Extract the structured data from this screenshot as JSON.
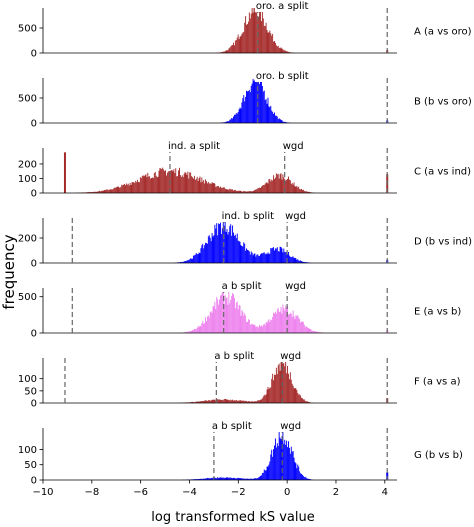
{
  "chart_data": {
    "type": "histogram-stack",
    "xlabel": "log transformed kS value",
    "ylabel": "frequency",
    "x_ticks": [
      -10,
      -8,
      -6,
      -4,
      -2,
      0,
      2,
      4
    ],
    "xlim": [
      -10,
      4.5
    ],
    "panels": [
      {
        "label": "A (a vs oro)",
        "color": "#a52a2a",
        "ylim": [
          0,
          900
        ],
        "y_ticks": [
          0,
          500
        ],
        "tail_spikes": [
          {
            "x": 4.1,
            "value": 60
          }
        ],
        "peaks": [
          {
            "center": -1.3,
            "sd": 0.5,
            "height": 850
          }
        ],
        "vlines": [
          {
            "x": -1.2,
            "label": "oro. a split"
          },
          {
            "x": 4.1,
            "label": ""
          }
        ]
      },
      {
        "label": "B (b vs oro)",
        "color": "#0000ff",
        "ylim": [
          0,
          900
        ],
        "y_ticks": [
          0,
          500
        ],
        "tail_spikes": [
          {
            "x": 4.1,
            "value": 50
          }
        ],
        "peaks": [
          {
            "center": -1.3,
            "sd": 0.45,
            "height": 850
          }
        ],
        "vlines": [
          {
            "x": -1.2,
            "label": "oro. b split"
          },
          {
            "x": 4.1,
            "label": ""
          }
        ]
      },
      {
        "label": "C (a vs ind)",
        "color": "#a52a2a",
        "ylim": [
          0,
          310
        ],
        "y_ticks": [
          0,
          100,
          200
        ],
        "tail_spikes": [
          {
            "x": -9.1,
            "value": 280
          },
          {
            "x": 4.1,
            "value": 130
          }
        ],
        "peaks": [
          {
            "center": -4.8,
            "sd": 1.3,
            "height": 150
          },
          {
            "center": -0.3,
            "sd": 0.5,
            "height": 120
          }
        ],
        "vlines": [
          {
            "x": -4.8,
            "label": "ind. a split"
          },
          {
            "x": -0.1,
            "label": "wgd"
          },
          {
            "x": 4.1,
            "label": ""
          }
        ]
      },
      {
        "label": "D (b vs ind)",
        "color": "#0000ff",
        "ylim": [
          0,
          360
        ],
        "y_ticks": [
          0,
          200
        ],
        "tail_spikes": [
          {
            "x": 4.1,
            "value": 25
          }
        ],
        "peaks": [
          {
            "center": -2.6,
            "sd": 0.65,
            "height": 300
          },
          {
            "center": -0.4,
            "sd": 0.5,
            "height": 110
          }
        ],
        "vlines": [
          {
            "x": -8.8,
            "label": ""
          },
          {
            "x": -2.6,
            "label": "ind. b split"
          },
          {
            "x": 0.0,
            "label": "wgd"
          },
          {
            "x": 4.1,
            "label": ""
          }
        ]
      },
      {
        "label": "E (a vs b)",
        "color": "#ee82ee",
        "ylim": [
          0,
          620
        ],
        "y_ticks": [
          0,
          500
        ],
        "tail_spikes": [
          {
            "x": 4.1,
            "value": 40
          }
        ],
        "peaks": [
          {
            "center": -2.5,
            "sd": 0.6,
            "height": 500
          },
          {
            "center": -0.1,
            "sd": 0.55,
            "height": 330
          }
        ],
        "vlines": [
          {
            "x": -8.8,
            "label": ""
          },
          {
            "x": -2.6,
            "label": "a b split"
          },
          {
            "x": 0.0,
            "label": "wgd"
          },
          {
            "x": 4.1,
            "label": ""
          }
        ]
      },
      {
        "label": "F (a vs a)",
        "color": "#a52a2a",
        "ylim": [
          0,
          185
        ],
        "y_ticks": [
          0,
          50,
          100
        ],
        "tail_spikes": [
          {
            "x": 4.1,
            "value": 20
          }
        ],
        "peaks": [
          {
            "center": -2.6,
            "sd": 0.8,
            "height": 14
          },
          {
            "center": -0.2,
            "sd": 0.4,
            "height": 160
          }
        ],
        "vlines": [
          {
            "x": -9.1,
            "label": ""
          },
          {
            "x": -2.9,
            "label": "a b split"
          },
          {
            "x": -0.2,
            "label": "wgd"
          },
          {
            "x": 4.1,
            "label": ""
          }
        ]
      },
      {
        "label": "G (b vs b)",
        "color": "#0000ff",
        "ylim": [
          0,
          170
        ],
        "y_ticks": [
          0,
          50,
          100
        ],
        "tail_spikes": [
          {
            "x": 4.1,
            "value": 25
          }
        ],
        "peaks": [
          {
            "center": -2.6,
            "sd": 0.8,
            "height": 8
          },
          {
            "center": -0.2,
            "sd": 0.4,
            "height": 150
          }
        ],
        "vlines": [
          {
            "x": -3.0,
            "label": "a b split"
          },
          {
            "x": -0.2,
            "label": "wgd"
          },
          {
            "x": 4.1,
            "label": ""
          }
        ]
      }
    ]
  }
}
